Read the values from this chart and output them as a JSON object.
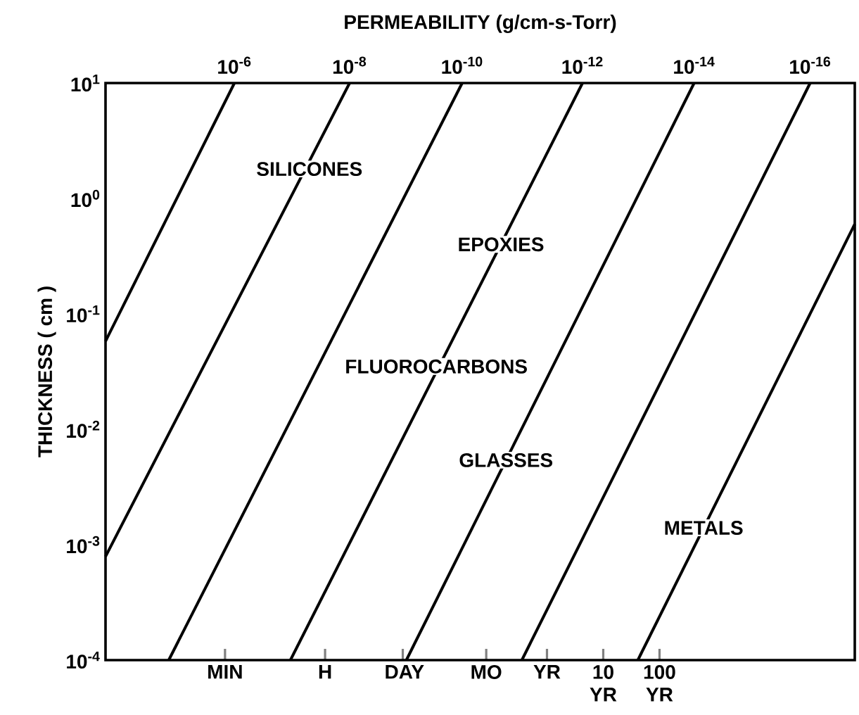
{
  "chart_data": {
    "type": "line",
    "legend_title": "PERMEABILITY (g/cm-s-Torr)",
    "ylabel": "THICKNESS ( cm )",
    "log": "xy",
    "line_style": "solid",
    "xlim": [
      1.43e-08,
      295000
    ],
    "xticks": [
      {
        "value": 1.9e-06,
        "label": "MIN"
      },
      {
        "value": 0.000114,
        "label": "H"
      },
      {
        "value": 0.00274,
        "label": "DAY"
      },
      {
        "value": 0.0833,
        "label": "MO"
      },
      {
        "value": 1,
        "label": "YR"
      },
      {
        "value": 10,
        "label": "10 YR"
      },
      {
        "value": 100,
        "label": "100 YR"
      }
    ],
    "ylim": [
      0.0001,
      10
    ],
    "yticks": [
      {
        "value": 0.0001,
        "label": "10$^{-4}$"
      },
      {
        "value": 0.001,
        "label": "10$^{-3}$"
      },
      {
        "value": 0.01,
        "label": "10$^{-2}$"
      },
      {
        "value": 0.1,
        "label": "10$^{-1}$"
      },
      {
        "value": 1,
        "label": "10$^{0}$"
      },
      {
        "value": 10,
        "label": "10$^{1}$"
      }
    ],
    "series": [
      {
        "name": "10$^{-6}$",
        "color": "#000000",
        "x": [
          1.43e-08,
          2.79e-06
        ],
        "values": [
          0.058,
          10
        ]
      },
      {
        "name": "10$^{-8}$",
        "color": "#000000",
        "x": [
          1.43e-08,
          0.000311
        ],
        "values": [
          0.00079,
          10
        ]
      },
      {
        "name": "10$^{-10}$",
        "color": "#000000",
        "x": [
          1.9e-07,
          0.0311
        ],
        "values": [
          0.0001,
          10
        ]
      },
      {
        "name": "10$^{-12}$",
        "color": "#000000",
        "x": [
          2.76e-05,
          4.28
        ],
        "values": [
          0.0001,
          10
        ]
      },
      {
        "name": "10$^{-14}$",
        "color": "#000000",
        "x": [
          0.00317,
          412
        ],
        "values": [
          0.0001,
          10
        ]
      },
      {
        "name": "10$^{-16}$",
        "color": "#000000",
        "x": [
          0.358,
          47500
        ],
        "values": [
          0.0001,
          10
        ]
      },
      {
        "color": "#000000",
        "x": [
          41.2,
          295000
        ],
        "values": [
          0.0001,
          0.6
        ]
      }
    ],
    "annotations": [
      {
        "text": "SILICONES",
        "x": 6e-05,
        "y": 1.8
      },
      {
        "text": "EPOXIES",
        "x": 0.152,
        "y": 0.4
      },
      {
        "text": "FLUOROCARBONS",
        "x": 0.0108,
        "y": 0.035
      },
      {
        "text": "GLASSES",
        "x": 0.187,
        "y": 0.0054
      },
      {
        "text": "METALS",
        "x": 608,
        "y": 0.0014
      }
    ]
  }
}
